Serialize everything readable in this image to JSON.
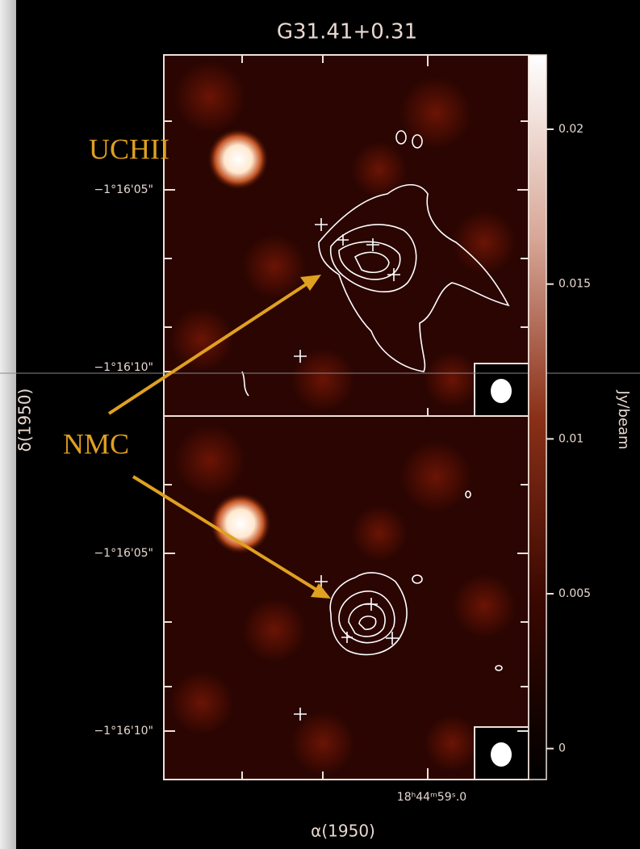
{
  "chart_data": {
    "type": "image",
    "title": "G31.41+0.31",
    "x_label": "α(1950)",
    "y_label": "δ(1950)",
    "ra_tick_label": "18ʰ44ᵐ59ˢ.0",
    "dec_tick_labels": [
      "−1°16'05\"",
      "−1°16'10\"",
      "−1°16'05\"",
      "−1°16'10\""
    ],
    "annotations": [
      "UCHII",
      "NMC"
    ],
    "colorbar": {
      "label": "Jy/beam",
      "lim": [
        -0.001,
        0.0224
      ],
      "ticks": [
        0,
        0.005,
        0.01,
        0.015,
        0.02
      ]
    }
  }
}
